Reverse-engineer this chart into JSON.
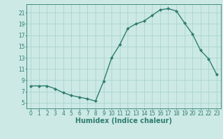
{
  "x": [
    0,
    1,
    2,
    3,
    4,
    5,
    6,
    7,
    8,
    9,
    10,
    11,
    12,
    13,
    14,
    15,
    16,
    17,
    18,
    19,
    20,
    21,
    22,
    23
  ],
  "y": [
    8.0,
    8.0,
    8.0,
    7.5,
    6.8,
    6.3,
    6.0,
    5.7,
    5.3,
    8.8,
    13.0,
    15.3,
    18.2,
    19.0,
    19.5,
    20.5,
    21.5,
    21.7,
    21.3,
    19.2,
    17.2,
    14.3,
    12.8,
    10.0
  ],
  "line_color": "#2e7d6e",
  "marker": "D",
  "marker_size": 2.0,
  "bg_color": "#cce9e5",
  "grid_color": "#aad4cf",
  "xlabel": "Humidex (Indice chaleur)",
  "ylim": [
    4,
    22.5
  ],
  "xlim": [
    -0.5,
    23.5
  ],
  "yticks": [
    5,
    7,
    9,
    11,
    13,
    15,
    17,
    19,
    21
  ],
  "xticks": [
    0,
    1,
    2,
    3,
    4,
    5,
    6,
    7,
    8,
    9,
    10,
    11,
    12,
    13,
    14,
    15,
    16,
    17,
    18,
    19,
    20,
    21,
    22,
    23
  ],
  "tick_label_fontsize": 5.5,
  "xlabel_fontsize": 7.0,
  "line_width": 1.0
}
